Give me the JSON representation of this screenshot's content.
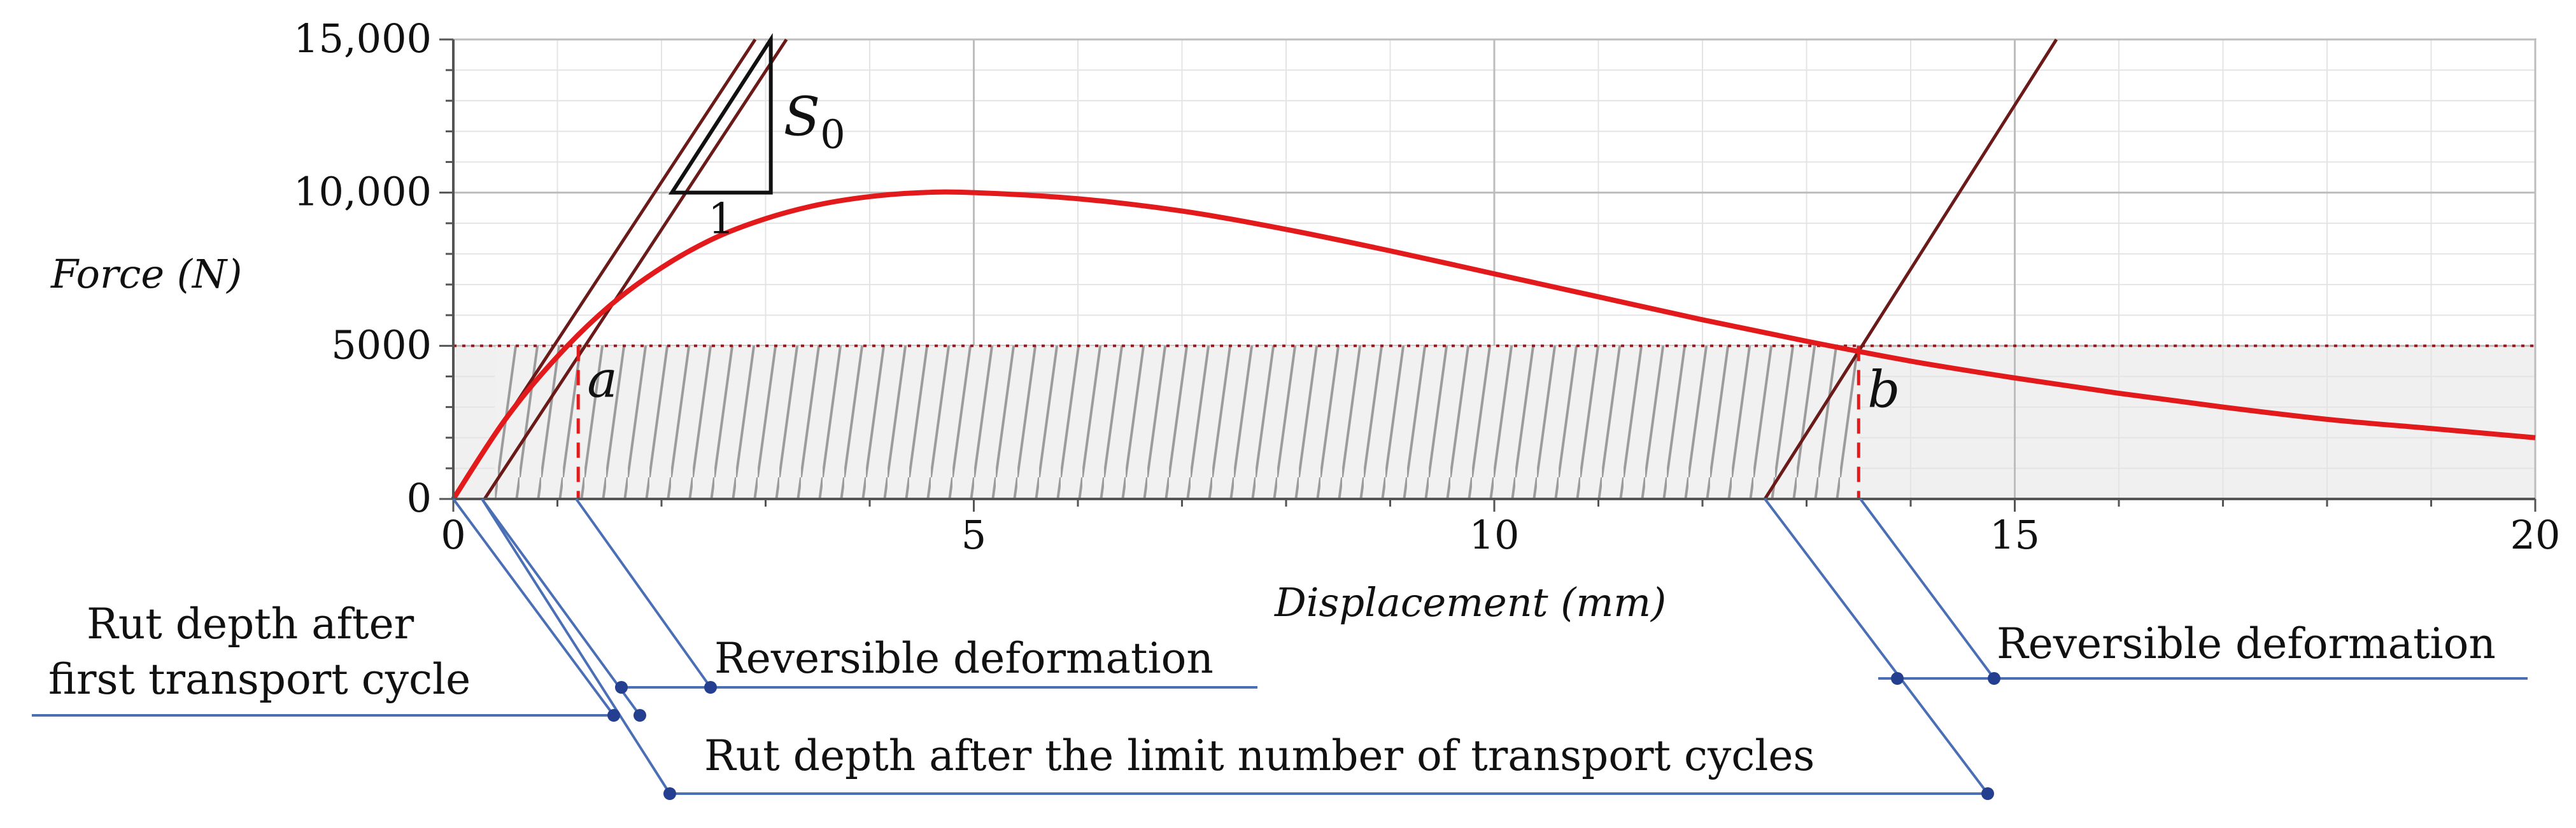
{
  "chart_data": {
    "type": "line",
    "xlabel": "Displacement (mm)",
    "ylabel": "Force (N)",
    "xlim": [
      0,
      20
    ],
    "ylim": [
      0,
      15000
    ],
    "x_ticks": [
      0,
      5,
      10,
      15,
      20
    ],
    "x_tick_labels": [
      "0",
      "5",
      "10",
      "15",
      "20"
    ],
    "y_ticks": [
      0,
      5000,
      10000,
      15000
    ],
    "y_tick_labels": [
      "0",
      "5000",
      "10,000",
      "15,000"
    ],
    "grid": true,
    "series": [
      {
        "color": "#e31a1c",
        "x": [
          0,
          0.5,
          1,
          1.5,
          2,
          2.5,
          3,
          3.5,
          4,
          4.5,
          5,
          6,
          7,
          8,
          9,
          10,
          11,
          12,
          13,
          14,
          15,
          16,
          17,
          18,
          19,
          20
        ],
        "y": [
          0,
          2600,
          4650,
          6300,
          7550,
          8500,
          9150,
          9600,
          9870,
          10000,
          10000,
          9800,
          9400,
          8800,
          8100,
          7350,
          6600,
          5850,
          5150,
          4500,
          3950,
          3450,
          3000,
          2600,
          2300,
          2000
        ]
      }
    ],
    "stiffness_lines": [
      {
        "color": "#6b1a1a",
        "x1": 0,
        "y1": 0,
        "x2": 2.9,
        "y2": 15000
      },
      {
        "color": "#6b1a1a",
        "x1": 0.3,
        "y1": 0,
        "x2": 3.2,
        "y2": 15000
      },
      {
        "color": "#6b1a1a",
        "x1": 12.6,
        "y1": 0,
        "x2": 15.4,
        "y2": 15000
      }
    ],
    "reference_line": {
      "y": 5000,
      "color": "#8b1a1a",
      "style": "dotted"
    },
    "points": [
      {
        "label": "a",
        "x": 1.2,
        "y": 5000
      },
      {
        "label": "b",
        "x": 13.5,
        "y": 5000
      }
    ],
    "hatched_region": {
      "x_start": 0.4,
      "x_end": 13.5,
      "y_top": 5000
    },
    "slope_triangle": {
      "x1": 2.1,
      "x2": 3.05,
      "y_low": 10000,
      "y_high": 15000,
      "run_label": "1",
      "slope_label": "S",
      "slope_subscript": "0"
    },
    "annotations": [
      {
        "key": "rut_first_line1",
        "text": "Rut depth after"
      },
      {
        "key": "rut_first_line2",
        "text": "first transport cycle"
      },
      {
        "key": "reversible_left",
        "text": "Reversible deformation"
      },
      {
        "key": "reversible_right",
        "text": "Reversible deformation"
      },
      {
        "key": "rut_limit",
        "text": "Rut depth after the limit number of transport cycles"
      }
    ]
  }
}
